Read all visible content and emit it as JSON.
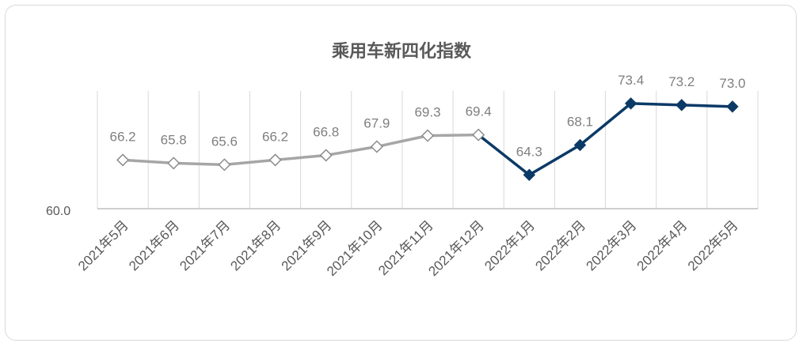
{
  "chart_data": {
    "type": "line",
    "title": "乘用车新四化指数",
    "xlabel": "",
    "ylabel": "",
    "categories": [
      "2021年5月",
      "2021年6月",
      "2021年7月",
      "2021年8月",
      "2021年9月",
      "2021年10月",
      "2021年11月",
      "2021年12月",
      "2022年1月",
      "2022年2月",
      "2022年3月",
      "2022年4月",
      "2022年5月"
    ],
    "values": [
      66.2,
      65.8,
      65.6,
      66.2,
      66.8,
      67.9,
      69.3,
      69.4,
      64.3,
      68.1,
      73.4,
      73.2,
      73.0
    ],
    "data_labels": [
      "66.2",
      "65.8",
      "65.6",
      "66.2",
      "66.8",
      "67.9",
      "69.3",
      "69.4",
      "64.3",
      "68.1",
      "73.4",
      "73.2",
      "73.0"
    ],
    "y_axis_label": "60.0",
    "ylim": [
      60,
      75
    ],
    "series_styles": [
      {
        "range": [
          0,
          7
        ],
        "color": "#a6a6a6",
        "marker": "hollow-diamond"
      },
      {
        "range": [
          7,
          12
        ],
        "color": "#0b3a67",
        "marker": "filled-diamond"
      }
    ],
    "grid": "vertical",
    "legend": "none"
  }
}
